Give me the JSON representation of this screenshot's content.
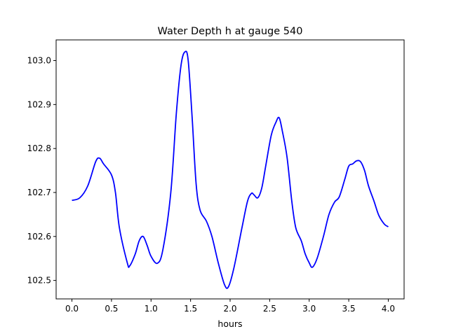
{
  "chart_data": {
    "type": "line",
    "title": "Water Depth h at gauge 540",
    "xlabel": "hours",
    "ylabel": "",
    "xlim": [
      -0.2,
      4.2
    ],
    "ylim": [
      102.458,
      103.047
    ],
    "xticks": [
      0.0,
      0.5,
      1.0,
      1.5,
      2.0,
      2.5,
      3.0,
      3.5,
      4.0
    ],
    "xtick_labels": [
      "0.0",
      "0.5",
      "1.0",
      "1.5",
      "2.0",
      "2.5",
      "3.0",
      "3.5",
      "4.0"
    ],
    "yticks": [
      102.5,
      102.6,
      102.7,
      102.8,
      102.9,
      103.0
    ],
    "ytick_labels": [
      "102.5",
      "102.6",
      "102.7",
      "102.8",
      "102.9",
      "103.0"
    ],
    "grid": false,
    "legend": "none",
    "series": [
      {
        "color": "#0000ff",
        "points": [
          [
            0.0,
            102.682
          ],
          [
            0.1,
            102.688
          ],
          [
            0.2,
            102.715
          ],
          [
            0.3,
            102.77
          ],
          [
            0.35,
            102.778
          ],
          [
            0.4,
            102.765
          ],
          [
            0.5,
            102.74
          ],
          [
            0.55,
            102.7
          ],
          [
            0.6,
            102.62
          ],
          [
            0.7,
            102.54
          ],
          [
            0.73,
            102.533
          ],
          [
            0.8,
            102.56
          ],
          [
            0.85,
            102.59
          ],
          [
            0.9,
            102.6
          ],
          [
            0.95,
            102.58
          ],
          [
            1.0,
            102.555
          ],
          [
            1.08,
            102.539
          ],
          [
            1.15,
            102.57
          ],
          [
            1.25,
            102.7
          ],
          [
            1.32,
            102.88
          ],
          [
            1.38,
            102.99
          ],
          [
            1.43,
            103.02
          ],
          [
            1.47,
            103.0
          ],
          [
            1.52,
            102.87
          ],
          [
            1.57,
            102.72
          ],
          [
            1.62,
            102.66
          ],
          [
            1.7,
            102.635
          ],
          [
            1.77,
            102.6
          ],
          [
            1.85,
            102.54
          ],
          [
            1.93,
            102.49
          ],
          [
            1.98,
            102.486
          ],
          [
            2.05,
            102.53
          ],
          [
            2.15,
            102.62
          ],
          [
            2.22,
            102.68
          ],
          [
            2.27,
            102.698
          ],
          [
            2.3,
            102.695
          ],
          [
            2.35,
            102.688
          ],
          [
            2.4,
            102.71
          ],
          [
            2.45,
            102.76
          ],
          [
            2.52,
            102.83
          ],
          [
            2.58,
            102.86
          ],
          [
            2.62,
            102.87
          ],
          [
            2.66,
            102.84
          ],
          [
            2.72,
            102.78
          ],
          [
            2.78,
            102.68
          ],
          [
            2.83,
            102.62
          ],
          [
            2.9,
            102.59
          ],
          [
            2.95,
            102.56
          ],
          [
            3.0,
            102.54
          ],
          [
            3.04,
            102.53
          ],
          [
            3.1,
            102.55
          ],
          [
            3.18,
            102.6
          ],
          [
            3.25,
            102.65
          ],
          [
            3.32,
            102.678
          ],
          [
            3.38,
            102.69
          ],
          [
            3.45,
            102.73
          ],
          [
            3.5,
            102.76
          ],
          [
            3.55,
            102.765
          ],
          [
            3.6,
            102.772
          ],
          [
            3.65,
            102.77
          ],
          [
            3.7,
            102.75
          ],
          [
            3.75,
            102.715
          ],
          [
            3.82,
            102.68
          ],
          [
            3.88,
            102.648
          ],
          [
            3.95,
            102.628
          ],
          [
            4.0,
            102.622
          ]
        ]
      }
    ]
  }
}
